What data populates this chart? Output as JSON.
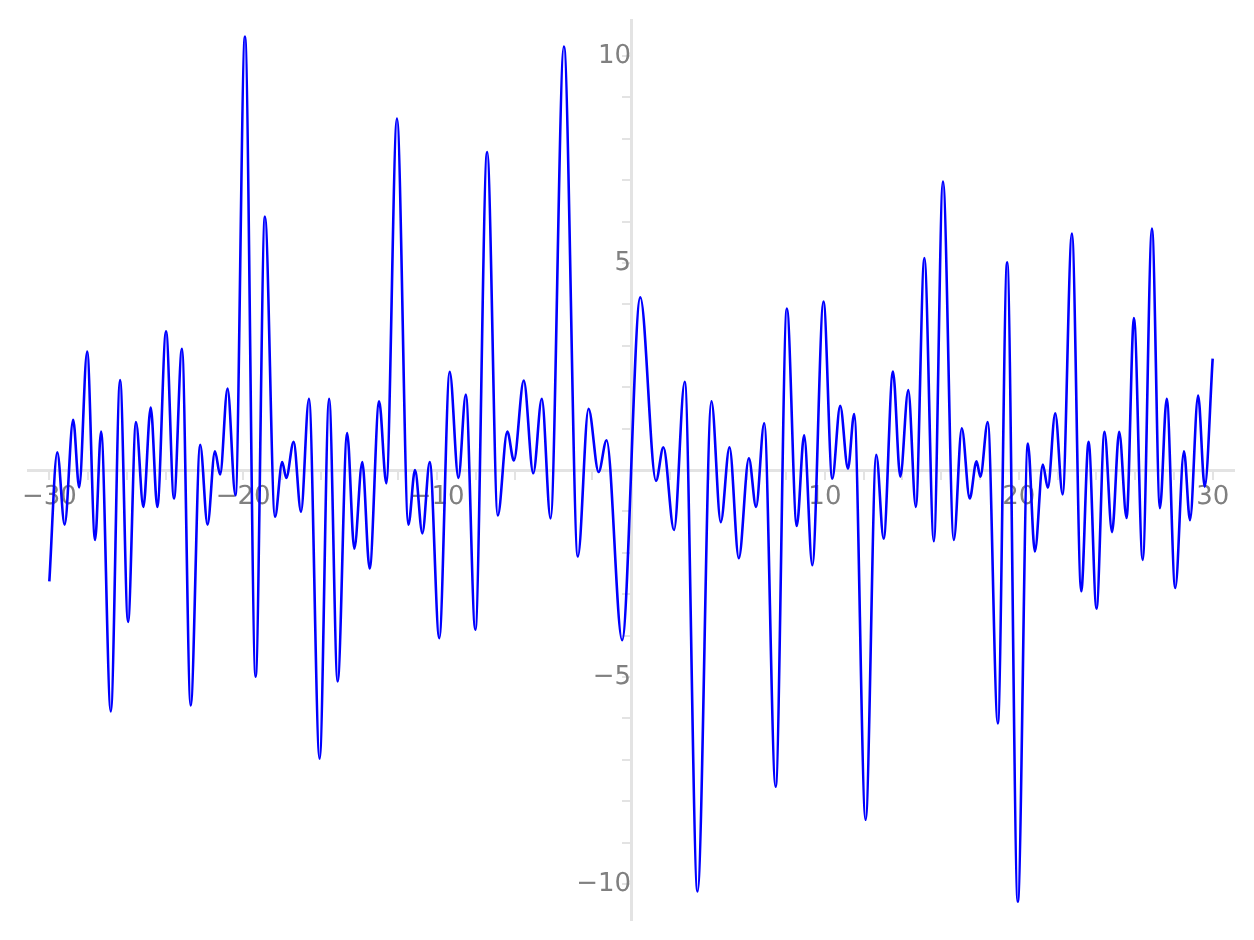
{
  "chart_data": {
    "type": "line",
    "xlim": [
      -31.1,
      31.1
    ],
    "ylim": [
      -10.87,
      10.87
    ],
    "xticks": [
      {
        "value": -30,
        "label": "−30"
      },
      {
        "value": -28,
        "label": null
      },
      {
        "value": -26,
        "label": null
      },
      {
        "value": -24,
        "label": null
      },
      {
        "value": -22,
        "label": null
      },
      {
        "value": -20,
        "label": "−20"
      },
      {
        "value": -18,
        "label": null
      },
      {
        "value": -16,
        "label": null
      },
      {
        "value": -14,
        "label": null
      },
      {
        "value": -12,
        "label": null
      },
      {
        "value": -10,
        "label": "−10"
      },
      {
        "value": -8,
        "label": null
      },
      {
        "value": -6,
        "label": null
      },
      {
        "value": -4,
        "label": null
      },
      {
        "value": -2,
        "label": null
      },
      {
        "value": 2,
        "label": null
      },
      {
        "value": 4,
        "label": null
      },
      {
        "value": 6,
        "label": null
      },
      {
        "value": 8,
        "label": null
      },
      {
        "value": 10,
        "label": "10"
      },
      {
        "value": 12,
        "label": null
      },
      {
        "value": 14,
        "label": null
      },
      {
        "value": 16,
        "label": null
      },
      {
        "value": 18,
        "label": null
      },
      {
        "value": 20,
        "label": "20"
      },
      {
        "value": 22,
        "label": null
      },
      {
        "value": 24,
        "label": null
      },
      {
        "value": 26,
        "label": null
      },
      {
        "value": 28,
        "label": null
      },
      {
        "value": 30,
        "label": "30"
      }
    ],
    "yticks": [
      {
        "value": -10,
        "label": "−10"
      },
      {
        "value": -9,
        "label": null
      },
      {
        "value": -8,
        "label": null
      },
      {
        "value": -7,
        "label": null
      },
      {
        "value": -6,
        "label": null
      },
      {
        "value": -5,
        "label": "−5"
      },
      {
        "value": -4,
        "label": null
      },
      {
        "value": -3,
        "label": null
      },
      {
        "value": -2,
        "label": null
      },
      {
        "value": -1,
        "label": null
      },
      {
        "value": 1,
        "label": null
      },
      {
        "value": 2,
        "label": null
      },
      {
        "value": 3,
        "label": null
      },
      {
        "value": 4,
        "label": null
      },
      {
        "value": 5,
        "label": "5"
      },
      {
        "value": 6,
        "label": null
      },
      {
        "value": 7,
        "label": null
      },
      {
        "value": 8,
        "label": null
      },
      {
        "value": 9,
        "label": null
      },
      {
        "value": 10,
        "label": "10"
      }
    ],
    "grid": false,
    "legend": false,
    "marker": "none",
    "line_style": "solid",
    "series": [
      {
        "color": "#0000ff",
        "x": [
          -30,
          -29.59,
          -29.21,
          -28.77,
          -28.46,
          -28.05,
          -27.64,
          -27.33,
          -26.83,
          -26.35,
          -25.94,
          -25.53,
          -25.15,
          -24.77,
          -24.43,
          -23.98,
          -23.57,
          -23.16,
          -22.71,
          -22.22,
          -21.84,
          -21.46,
          -21.19,
          -20.81,
          -20.4,
          -19.91,
          -19.36,
          -18.88,
          -18.36,
          -17.99,
          -17.78,
          -17.4,
          -17.02,
          -16.61,
          -16.06,
          -15.57,
          -15.13,
          -14.64,
          -14.27,
          -13.86,
          -13.48,
          -12.99,
          -12.62,
          -12.07,
          -11.48,
          -11.14,
          -10.76,
          -10.38,
          -9.89,
          -9.35,
          -8.9,
          -8.52,
          -8.03,
          -7.42,
          -6.87,
          -6.38,
          -6.04,
          -5.53,
          -5.04,
          -4.6,
          -4.15,
          -3.46,
          -2.74,
          -2.19,
          -1.67,
          -1.26,
          -0.46,
          0.48,
          1.29,
          1.67,
          2.22,
          2.77,
          3.43,
          4.15,
          4.63,
          5.08,
          5.56,
          6.08,
          6.45,
          6.87,
          7.46,
          8.04,
          8.55,
          8.93,
          9.35,
          9.93,
          10.38,
          10.79,
          11.19,
          11.51,
          12.1,
          12.65,
          13.03,
          13.51,
          13.89,
          14.3,
          14.69,
          15.13,
          15.62,
          16.09,
          16.65,
          17.06,
          17.47,
          17.82,
          18.02,
          18.4,
          18.92,
          19.4,
          19.95,
          20.47,
          20.83,
          21.24,
          21.5,
          21.88,
          22.26,
          22.74,
          23.22,
          23.6,
          24.01,
          24.42,
          24.81,
          25.18,
          25.56,
          25.94,
          26.39,
          26.87,
          27.28,
          27.63,
          28.07,
          28.52,
          28.83,
          29.25,
          29.59,
          30
        ],
        "values": [
          -2.69,
          0.43,
          -1.32,
          1.21,
          -0.42,
          2.86,
          -1.69,
          0.93,
          -5.83,
          2.17,
          -3.67,
          1.16,
          -0.89,
          1.51,
          -0.89,
          3.35,
          -0.69,
          2.93,
          -5.69,
          0.61,
          -1.32,
          0.45,
          -0.11,
          1.97,
          -0.61,
          10.47,
          -4.99,
          6.12,
          -1.13,
          0.19,
          -0.19,
          0.68,
          -1.01,
          1.72,
          -6.97,
          1.72,
          -5.11,
          0.89,
          -1.9,
          0.19,
          -2.38,
          1.66,
          -0.32,
          8.49,
          -1.32,
          0,
          -1.53,
          0.19,
          -4.06,
          2.37,
          -0.19,
          1.82,
          -3.86,
          7.68,
          -1.1,
          0.93,
          0.23,
          2.16,
          -0.08,
          1.72,
          -1.17,
          10.23,
          -2.09,
          1.48,
          -0.05,
          0.72,
          -4.11,
          4.17,
          -0.26,
          0.55,
          -1.45,
          2.13,
          -10.18,
          1.66,
          -1.26,
          0.55,
          -2.13,
          0.28,
          -0.89,
          1.13,
          -7.65,
          3.9,
          -1.35,
          0.84,
          -2.3,
          4.07,
          -0.21,
          1.55,
          0.03,
          1.35,
          -8.45,
          0.37,
          -1.66,
          2.38,
          -0.16,
          1.93,
          -0.89,
          5.12,
          -1.72,
          6.97,
          -1.69,
          1.01,
          -0.69,
          0.21,
          -0.16,
          1.16,
          -6.12,
          5.02,
          -10.43,
          0.64,
          -1.97,
          0.13,
          -0.43,
          1.37,
          -0.59,
          5.71,
          -2.93,
          0.68,
          -3.35,
          0.92,
          -1.5,
          0.92,
          -1.16,
          3.67,
          -2.17,
          5.83,
          -0.92,
          1.72,
          -2.85,
          0.45,
          -1.21,
          1.8,
          -0.4,
          2.69
        ]
      }
    ]
  }
}
